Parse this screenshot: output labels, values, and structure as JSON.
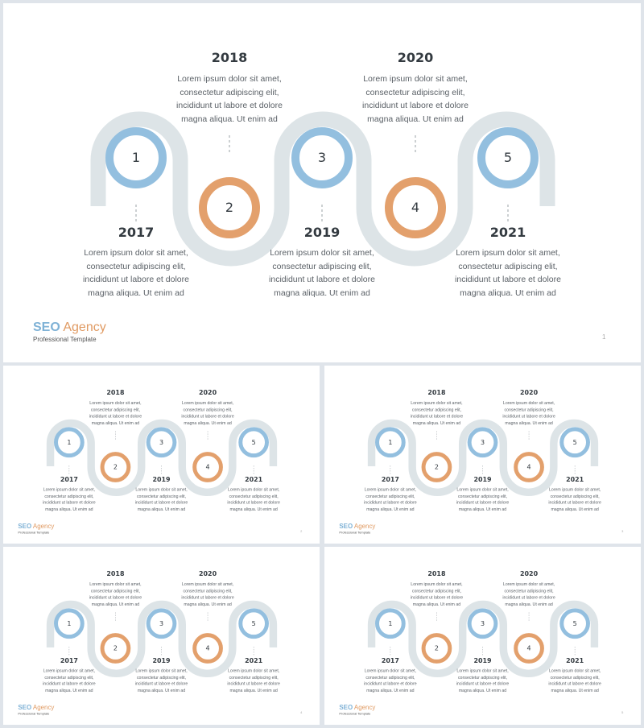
{
  "brand": {
    "name_part1": "SEO",
    "name_part2": "Agency",
    "tagline": "Professional Template"
  },
  "page_number": "1",
  "colors": {
    "blue": "#93bfdf",
    "orange": "#e3a06c",
    "track": "#dde4e7",
    "dash": "#9aa0a6",
    "text": "#333a40"
  },
  "milestones": [
    {
      "number": "1",
      "year": "2017",
      "description": "Lorem ipsum dolor sit amet, consectetur adipiscing elit, incididunt ut labore et dolore magna aliqua. Ut enim ad",
      "color": "blue"
    },
    {
      "number": "2",
      "year": "2018",
      "description": "Lorem ipsum dolor sit amet, consectetur adipiscing elit, incididunt ut labore et dolore magna aliqua. Ut enim ad",
      "color": "orange"
    },
    {
      "number": "3",
      "year": "2019",
      "description": "Lorem ipsum dolor sit amet, consectetur adipiscing elit, incididunt ut labore et dolore magna aliqua. Ut enim ad",
      "color": "blue"
    },
    {
      "number": "4",
      "year": "2020",
      "description": "Lorem ipsum dolor sit amet, consectetur adipiscing elit, incididunt ut labore et dolore magna aliqua. Ut enim ad",
      "color": "orange"
    },
    {
      "number": "5",
      "year": "2021",
      "description": "Lorem ipsum dolor sit amet, consectetur adipiscing elit, incididunt ut labore et dolore magna aliqua. Ut enim ad",
      "color": "blue"
    }
  ],
  "thumbnails": [
    {
      "page_number": "2"
    },
    {
      "page_number": "3"
    },
    {
      "page_number": "4"
    },
    {
      "page_number": "5"
    }
  ]
}
